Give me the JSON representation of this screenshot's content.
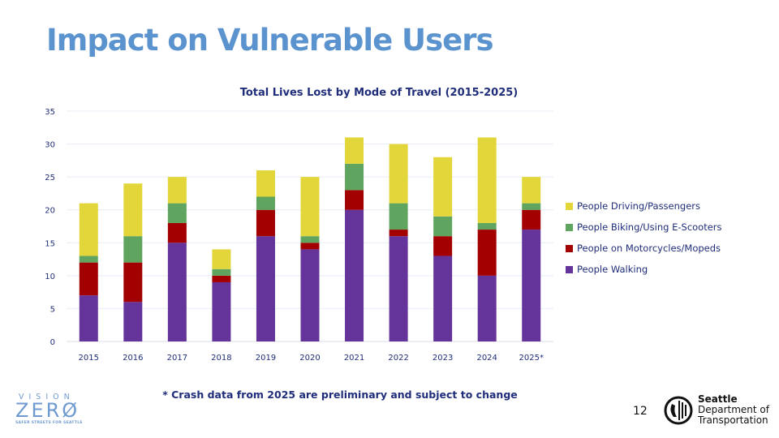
{
  "slide": {
    "title": "Impact on Vulnerable Users",
    "footnote": "* Crash data from 2025 are preliminary and subject to change",
    "page_number": "12",
    "logo_left": {
      "line1": "VISION",
      "line2": "ZERØ",
      "tagline": "SAFER STREETS FOR SEATTLE"
    },
    "logo_right": {
      "icon": "seattle-seal-icon",
      "line1": "Seattle",
      "line2": "Department of",
      "line3": "Transportation"
    }
  },
  "chart_data": {
    "type": "bar",
    "stacked": true,
    "title": "Total Lives Lost by Mode of Travel (2015-2025)",
    "xlabel": "",
    "ylabel": "",
    "ylim": [
      0,
      35
    ],
    "yticks": [
      0,
      5,
      10,
      15,
      20,
      25,
      30,
      35
    ],
    "grid": true,
    "legend_position": "right",
    "categories": [
      "2015",
      "2016",
      "2017",
      "2018",
      "2019",
      "2020",
      "2021",
      "2022",
      "2023",
      "2024",
      "2025*"
    ],
    "series": [
      {
        "name": "People Walking",
        "color": "#64349b",
        "values": [
          7,
          6,
          15,
          9,
          16,
          14,
          20,
          16,
          13,
          10,
          17
        ]
      },
      {
        "name": "People on Motorcycles/Mopeds",
        "color": "#a30002",
        "values": [
          5,
          6,
          3,
          1,
          4,
          1,
          3,
          1,
          3,
          7,
          3
        ]
      },
      {
        "name": "People Biking/Using E-Scooters",
        "color": "#5fa55f",
        "values": [
          1,
          4,
          3,
          1,
          2,
          1,
          4,
          4,
          3,
          1,
          1
        ]
      },
      {
        "name": "People Driving/Passengers",
        "color": "#e2d63a",
        "values": [
          8,
          8,
          4,
          3,
          4,
          9,
          4,
          9,
          9,
          13,
          4
        ]
      }
    ],
    "legend_order": [
      "People Driving/Passengers",
      "People Biking/Using E-Scooters",
      "People on Motorcycles/Mopeds",
      "People Walking"
    ]
  }
}
